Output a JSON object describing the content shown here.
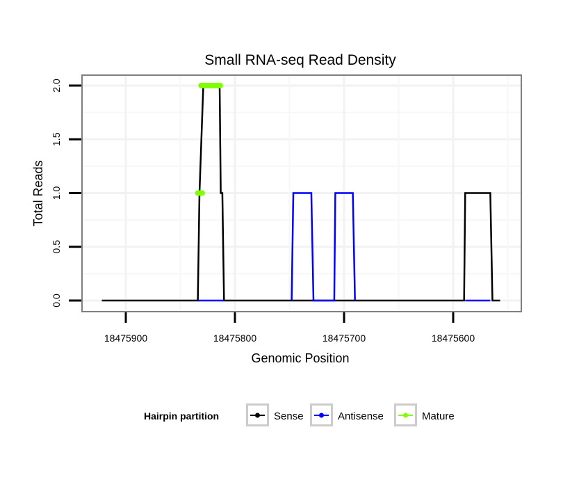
{
  "chart_data": {
    "type": "line",
    "title": "Small RNA-seq Read Density",
    "xlabel": "Genomic Position",
    "ylabel": "Total Reads",
    "xlim": [
      18475940,
      18475540
    ],
    "x_reversed": true,
    "ylim": [
      -0.07,
      2.1
    ],
    "xticks": [
      18475900,
      18475800,
      18475700,
      18475600
    ],
    "xtick_labels": [
      "18475900",
      "18475800",
      "18475700",
      "18475600"
    ],
    "yticks": [
      0,
      0.5,
      1,
      1.5,
      2
    ],
    "ytick_labels": [
      "0.0",
      "0.5",
      "1.0",
      "1.5",
      "2.0"
    ],
    "grid": true,
    "legend": {
      "title": "Hairpin partition",
      "placement": "bottom"
    },
    "series": [
      {
        "name": "Sense",
        "color": "#000000",
        "x": [
          18475922,
          18475834,
          18475832.5,
          18475829,
          18475814,
          18475813,
          18475811.5,
          18475810,
          18475590,
          18475589,
          18475566,
          18475564,
          18475557
        ],
        "y": [
          0,
          0,
          1,
          2,
          2,
          1,
          1,
          0,
          0,
          1,
          1,
          0,
          0
        ]
      },
      {
        "name": "Antisense",
        "color": "#0000ff",
        "x": [
          18475834,
          18475810,
          18475810,
          18475748,
          18475746.5,
          18475730,
          18475728,
          18475709,
          18475708,
          18475692,
          18475690,
          18475690,
          18475589,
          18475566
        ],
        "y": [
          0,
          0,
          null,
          0,
          1,
          1,
          0,
          0,
          1,
          1,
          0,
          null,
          0,
          0
        ]
      },
      {
        "name": "Mature",
        "color": "#7fff00",
        "segments": [
          {
            "x": [
              18475834,
              18475830
            ],
            "y": [
              1,
              1
            ]
          },
          {
            "x": [
              18475831,
              18475813.5
            ],
            "y": [
              2,
              2
            ]
          }
        ]
      }
    ]
  }
}
